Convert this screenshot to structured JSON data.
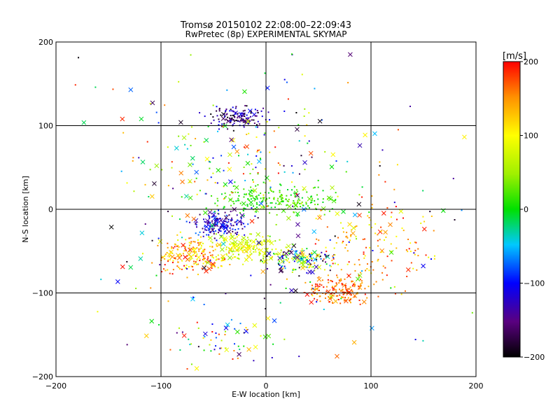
{
  "chart_data": {
    "type": "scatter",
    "title": "Tromsø 20150102 22:08:00–22:09:43",
    "subtitle": "RwPretec (8p) EXPERIMENTAL SKYMAP",
    "xlabel": "E-W location [km]",
    "ylabel": "N-S location [km]",
    "xlim": [
      -200,
      200
    ],
    "ylim": [
      -200,
      200
    ],
    "xticks": [
      -200,
      -100,
      0,
      100,
      200
    ],
    "yticks": [
      -200,
      -100,
      0,
      100,
      200
    ],
    "grid": true,
    "colorbar": {
      "label": "[m/s]",
      "min": -200,
      "max": 200,
      "ticks": [
        -200,
        -100,
        0,
        100,
        200
      ],
      "colormap": "rainbow (black-purple-blue-cyan-green-yellow-orange-red)"
    },
    "marker_types": [
      "dot",
      "x"
    ],
    "clusters": [
      {
        "cx": -30,
        "cy": 110,
        "sx": 18,
        "sy": 8,
        "n": 140,
        "vmin": -200,
        "vmax": -90,
        "xfrac": 0.05
      },
      {
        "cx": 10,
        "cy": 12,
        "sx": 40,
        "sy": 12,
        "n": 220,
        "vmin": -10,
        "vmax": 40,
        "xfrac": 0.08
      },
      {
        "cx": -45,
        "cy": -18,
        "sx": 18,
        "sy": 10,
        "n": 160,
        "vmin": -170,
        "vmax": -70,
        "xfrac": 0.15
      },
      {
        "cx": -70,
        "cy": -55,
        "sx": 25,
        "sy": 14,
        "n": 190,
        "vmin": 80,
        "vmax": 200,
        "xfrac": 0.12
      },
      {
        "cx": -20,
        "cy": -45,
        "sx": 22,
        "sy": 12,
        "n": 160,
        "vmin": 40,
        "vmax": 120,
        "xfrac": 0.2
      },
      {
        "cx": 30,
        "cy": -60,
        "sx": 22,
        "sy": 10,
        "n": 150,
        "vmin": -200,
        "vmax": 130,
        "xfrac": 0.2
      },
      {
        "cx": 70,
        "cy": -95,
        "sx": 22,
        "sy": 12,
        "n": 170,
        "vmin": 130,
        "vmax": 200,
        "xfrac": 0.08
      },
      {
        "cx": 100,
        "cy": -40,
        "sx": 45,
        "sy": 35,
        "n": 130,
        "vmin": 80,
        "vmax": 200,
        "xfrac": 0.05
      },
      {
        "cx": -10,
        "cy": 60,
        "sx": 70,
        "sy": 40,
        "n": 110,
        "vmin": -120,
        "vmax": 200,
        "xfrac": 0.25
      },
      {
        "cx": -40,
        "cy": -160,
        "sx": 40,
        "sy": 20,
        "n": 60,
        "vmin": -200,
        "vmax": 200,
        "xfrac": 0.3
      },
      {
        "cx": 0,
        "cy": 0,
        "sx": 130,
        "sy": 130,
        "n": 260,
        "vmin": -200,
        "vmax": 200,
        "xfrac": 0.3
      }
    ]
  }
}
